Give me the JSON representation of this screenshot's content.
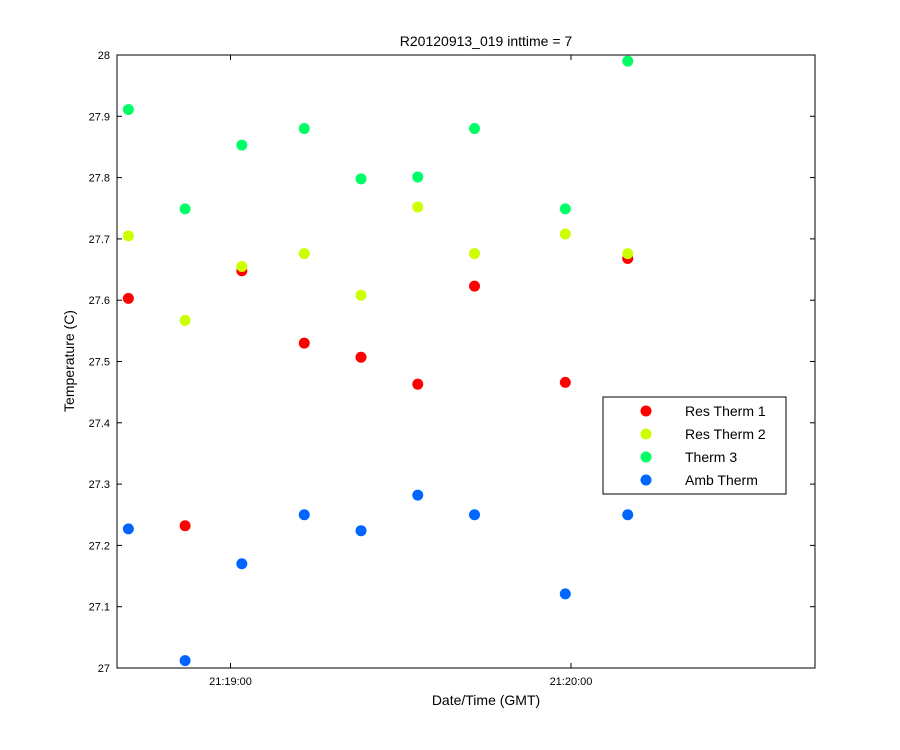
{
  "chart_data": {
    "type": "scatter",
    "title": "R20120913_019 inttime = 7",
    "xlabel": "Date/Time (GMT)",
    "ylabel": "Temperature (C)",
    "x_unit": "GMT time (HH:MM:SS)",
    "xlim": [
      "21:18:40",
      "21:20:43"
    ],
    "ylim": [
      27,
      28
    ],
    "x_ticks": [
      "21:19:00",
      "21:20:00"
    ],
    "y_ticks": [
      "27",
      "27.1",
      "27.2",
      "27.3",
      "27.4",
      "27.5",
      "27.6",
      "27.7",
      "27.8",
      "27.9",
      "28"
    ],
    "grid": false,
    "legend_position": "center-right",
    "x": [
      "21:18:42",
      "21:18:52",
      "21:19:02",
      "21:19:13",
      "21:19:23",
      "21:19:33",
      "21:19:43",
      "21:19:59",
      "21:20:10"
    ],
    "series": [
      {
        "name": "Res Therm 1",
        "color": "#ff0000",
        "x": [
          "21:18:42",
          "21:18:52",
          "21:19:02",
          "21:19:13",
          "21:19:23",
          "21:19:33",
          "21:19:43",
          "21:19:59",
          "21:20:10"
        ],
        "values": [
          27.603,
          27.232,
          27.648,
          27.53,
          27.507,
          27.463,
          27.623,
          27.466,
          27.668
        ]
      },
      {
        "name": "Res Therm 2",
        "color": "#ccff00",
        "x": [
          "21:18:42",
          "21:18:52",
          "21:19:02",
          "21:19:13",
          "21:19:23",
          "21:19:33",
          "21:19:43",
          "21:19:59",
          "21:20:10"
        ],
        "values": [
          27.705,
          27.567,
          27.655,
          27.676,
          27.608,
          27.752,
          27.676,
          27.708,
          27.676
        ]
      },
      {
        "name": "Therm 3",
        "color": "#00ff66",
        "x": [
          "21:18:42",
          "21:18:52",
          "21:19:02",
          "21:19:13",
          "21:19:23",
          "21:19:33",
          "21:19:43",
          "21:19:59",
          "21:20:10"
        ],
        "values": [
          27.911,
          27.749,
          27.853,
          27.88,
          27.798,
          27.801,
          27.88,
          27.749,
          27.99
        ]
      },
      {
        "name": "Amb Therm",
        "color": "#0066ff",
        "x": [
          "21:18:42",
          "21:18:52",
          "21:19:02",
          "21:19:13",
          "21:19:23",
          "21:19:33",
          "21:19:43",
          "21:19:59",
          "21:20:10"
        ],
        "values": [
          27.227,
          27.012,
          27.17,
          27.25,
          27.224,
          27.282,
          27.25,
          27.121,
          27.25
        ]
      }
    ]
  }
}
